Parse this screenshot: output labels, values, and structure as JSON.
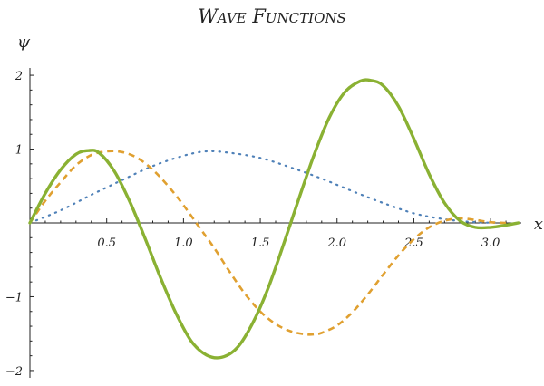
{
  "chart_data": {
    "type": "line",
    "title": "Wave Functions",
    "xlabel": "x",
    "ylabel": "ψ",
    "xlim": [
      0,
      3.2
    ],
    "ylim": [
      -2.05,
      2.05
    ],
    "x_ticks": [
      0.5,
      1.0,
      1.5,
      2.0,
      2.5,
      3.0
    ],
    "x_tick_labels": [
      "0.5",
      "1.0",
      "1.5",
      "2.0",
      "2.5",
      "3.0"
    ],
    "y_ticks": [
      -2,
      -1,
      0,
      1,
      2
    ],
    "y_tick_labels": [
      "−2",
      "−1",
      "",
      "1",
      "2"
    ],
    "grid": false,
    "legend": "none",
    "series": [
      {
        "style": "dotted",
        "color": "#4f81b8",
        "x": [
          0,
          0.2,
          0.4,
          0.6,
          0.8,
          1.0,
          1.15,
          1.3,
          1.5,
          1.7,
          1.9,
          2.1,
          2.3,
          2.5,
          2.7,
          2.9,
          3.1
        ],
        "y": [
          0,
          0.17,
          0.38,
          0.58,
          0.77,
          0.91,
          0.97,
          0.95,
          0.88,
          0.75,
          0.6,
          0.43,
          0.27,
          0.13,
          0.05,
          0.01,
          0.0
        ]
      },
      {
        "style": "dashed",
        "color": "#e0a030",
        "x": [
          0,
          0.1,
          0.2,
          0.3,
          0.4,
          0.5,
          0.6,
          0.7,
          0.8,
          0.9,
          1.0,
          1.1,
          1.2,
          1.3,
          1.4,
          1.5,
          1.6,
          1.7,
          1.8,
          1.85,
          1.9,
          2.0,
          2.1,
          2.2,
          2.3,
          2.4,
          2.5,
          2.6,
          2.7,
          2.8,
          2.9,
          3.0,
          3.1
        ],
        "y": [
          0,
          0.3,
          0.55,
          0.78,
          0.92,
          0.97,
          0.96,
          0.88,
          0.72,
          0.5,
          0.24,
          -0.05,
          -0.34,
          -0.66,
          -0.96,
          -1.2,
          -1.37,
          -1.47,
          -1.51,
          -1.51,
          -1.49,
          -1.39,
          -1.21,
          -0.97,
          -0.7,
          -0.44,
          -0.22,
          -0.06,
          0.03,
          0.06,
          0.04,
          0.01,
          0.0
        ]
      },
      {
        "style": "solid",
        "color": "#8ab133",
        "x": [
          0,
          0.1,
          0.2,
          0.3,
          0.38,
          0.45,
          0.55,
          0.65,
          0.75,
          0.85,
          0.95,
          1.05,
          1.15,
          1.25,
          1.35,
          1.45,
          1.55,
          1.65,
          1.75,
          1.85,
          1.95,
          2.05,
          2.15,
          2.22,
          2.3,
          2.4,
          2.5,
          2.6,
          2.7,
          2.8,
          2.9,
          3.0,
          3.1,
          3.18
        ],
        "y": [
          0,
          0.4,
          0.72,
          0.93,
          0.98,
          0.95,
          0.7,
          0.29,
          -0.21,
          -0.74,
          -1.22,
          -1.6,
          -1.79,
          -1.82,
          -1.69,
          -1.36,
          -0.89,
          -0.3,
          0.32,
          0.92,
          1.43,
          1.77,
          1.92,
          1.93,
          1.86,
          1.58,
          1.14,
          0.66,
          0.27,
          0.03,
          -0.06,
          -0.06,
          -0.03,
          0.0
        ]
      }
    ]
  }
}
